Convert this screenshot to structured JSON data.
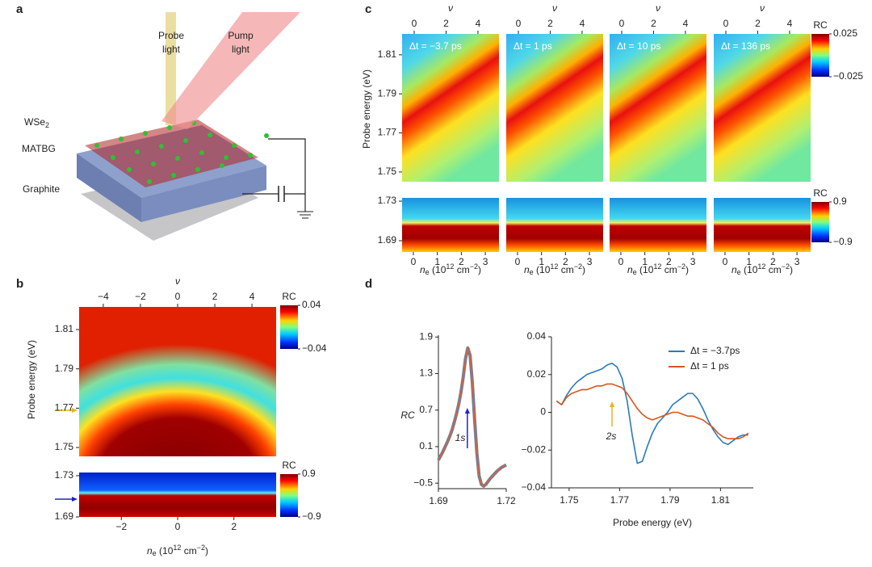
{
  "panel_a": {
    "label": "a",
    "probe": [
      "Probe",
      "light"
    ],
    "pump": [
      "Pump",
      "light"
    ],
    "wse2": [
      "WSe",
      "2"
    ],
    "matbg": "MATBG",
    "graphite": "Graphite"
  },
  "chart_data": [
    {
      "type": "heatmap",
      "label": "b",
      "ylabel": "Probe energy (eV)",
      "x2label": "ν",
      "x2lim": [
        -5.3,
        5.3
      ],
      "x2ticks": [
        {
          "value": -4,
          "label": "−4"
        },
        {
          "value": -2,
          "label": "−2"
        },
        0,
        2,
        4
      ],
      "ylim": [
        1.7455,
        1.8215
      ],
      "yticks": [
        1.75,
        1.77,
        1.79,
        1.81
      ],
      "colorbar": {
        "label": "RC",
        "lim": [
          -0.04,
          0.04
        ],
        "ticks": [
          0.04,
          {
            "value": -0.04,
            "label": "−0.04"
          }
        ]
      }
    },
    {
      "type": "heatmap",
      "xlim": [
        -3.5,
        3.5
      ],
      "xticks": [
        {
          "value": -2,
          "label": "−2"
        },
        0,
        2
      ],
      "xlabel": [
        "n",
        "e",
        " (10",
        "12",
        " cm",
        "−2",
        ")"
      ],
      "ylim": [
        1.69,
        1.7331
      ],
      "yticks": [
        1.69,
        1.73
      ],
      "colorbar": {
        "label": "RC",
        "lim": [
          -0.9,
          0.9
        ],
        "ticks": [
          0.9,
          {
            "value": -0.9,
            "label": "−0.9"
          }
        ]
      }
    },
    {
      "type": "heatmap",
      "label": "c",
      "ylabel": "Probe energy (eV)",
      "annotation": "Δt = −3.7 ps",
      "x2label": "ν",
      "x2lim": [
        -0.76,
        5.32
      ],
      "x2ticks": [
        0,
        2,
        4
      ],
      "ylim": [
        1.745,
        1.8207
      ],
      "yticks": [
        1.75,
        1.77,
        1.79,
        1.81
      ]
    },
    {
      "type": "heatmap",
      "annotation": "Δt = 1 ps",
      "x2label": "ν",
      "x2lim": [
        -0.76,
        5.32
      ],
      "x2ticks": [
        0,
        2,
        4
      ]
    },
    {
      "type": "heatmap",
      "annotation": "Δt = 10 ps",
      "x2label": "ν",
      "x2lim": [
        -0.76,
        5.32
      ],
      "x2ticks": [
        0,
        2,
        4
      ]
    },
    {
      "type": "heatmap",
      "annotation": "Δt = 136 ps",
      "x2label": "ν",
      "x2lim": [
        -0.76,
        5.32
      ],
      "x2ticks": [
        0,
        2,
        4
      ],
      "colorbar": {
        "label": "RC",
        "lim": [
          -0.025,
          0.025
        ],
        "ticks": [
          0.025,
          {
            "value": -0.025,
            "label": "−0.025"
          }
        ]
      }
    },
    {
      "type": "heatmap",
      "xlim": [
        -0.47,
        3.57
      ],
      "xticks": [
        0,
        1,
        2,
        3
      ],
      "xlabel": [
        "n",
        "e",
        " (10",
        "12",
        " cm",
        "−2",
        ")"
      ],
      "ylim": [
        1.6786,
        1.7333
      ],
      "yticks": [
        1.69,
        1.73
      ]
    },
    {
      "type": "heatmap",
      "xlim": [
        -0.47,
        3.57
      ],
      "xticks": [
        0,
        1,
        2,
        3
      ],
      "xlabel": [
        "n",
        "e",
        " (10",
        "12",
        " cm",
        "−2",
        ")"
      ]
    },
    {
      "type": "heatmap",
      "xlim": [
        -0.47,
        3.57
      ],
      "xticks": [
        0,
        1,
        2,
        3
      ],
      "xlabel": [
        "n",
        "e",
        " (10",
        "12",
        " cm",
        "−2",
        ")"
      ]
    },
    {
      "type": "heatmap",
      "xlim": [
        -0.47,
        3.57
      ],
      "xticks": [
        0,
        1,
        2,
        3
      ],
      "xlabel": [
        "n",
        "e",
        " (10",
        "12",
        " cm",
        "−2",
        ")"
      ],
      "colorbar": {
        "label": "RC",
        "lim": [
          -0.9,
          0.9
        ],
        "ticks": [
          0.9,
          {
            "value": -0.9,
            "label": "−0.9"
          }
        ]
      }
    },
    {
      "type": "line",
      "label": "d",
      "ylabel": "RC",
      "annotation": "1s",
      "xlim": [
        1.69,
        1.72
      ],
      "xticks": [
        1.69,
        1.72
      ],
      "ylim": [
        -0.59,
        1.93
      ],
      "yticks": [
        {
          "value": -0.5,
          "label": "−0.5"
        },
        0.1,
        0.7,
        1.3,
        1.9
      ],
      "x": [
        1.69,
        1.691,
        1.692,
        1.693,
        1.694,
        1.695,
        1.696,
        1.697,
        1.698,
        1.699,
        1.7,
        1.701,
        1.702,
        1.703,
        1.704,
        1.705,
        1.706,
        1.707,
        1.708,
        1.709,
        1.71,
        1.711,
        1.712,
        1.713,
        1.714,
        1.715,
        1.716,
        1.717,
        1.718,
        1.719,
        1.72
      ],
      "series": [
        {
          "color": "#6a7fa0",
          "values": [
            -0.12,
            -0.05,
            0.02,
            0.1,
            0.18,
            0.27,
            0.37,
            0.5,
            0.64,
            0.8,
            1.0,
            1.25,
            1.55,
            1.72,
            1.6,
            1.15,
            0.55,
            0.0,
            -0.38,
            -0.52,
            -0.55,
            -0.52,
            -0.47,
            -0.42,
            -0.38,
            -0.34,
            -0.3,
            -0.27,
            -0.24,
            -0.22,
            -0.2
          ]
        },
        {
          "color": "#e06030",
          "values": [
            -0.12,
            -0.05,
            0.02,
            0.1,
            0.18,
            0.27,
            0.37,
            0.5,
            0.64,
            0.8,
            1.0,
            1.25,
            1.55,
            1.72,
            1.6,
            1.15,
            0.55,
            0.0,
            -0.38,
            -0.52,
            -0.55,
            -0.52,
            -0.47,
            -0.42,
            -0.38,
            -0.34,
            -0.3,
            -0.27,
            -0.24,
            -0.22,
            -0.2
          ]
        }
      ]
    },
    {
      "type": "line",
      "xlabel": "Probe energy (eV)",
      "annotation": "2s",
      "legend": "upper right",
      "xlim": [
        1.743,
        1.823
      ],
      "xticks": [
        1.75,
        1.77,
        1.79,
        1.81
      ],
      "ylim": [
        -0.04,
        0.04
      ],
      "yticks": [
        {
          "value": -0.04,
          "label": "−0.04"
        },
        {
          "value": -0.02,
          "label": "−0.02"
        },
        0,
        0.02,
        0.04
      ],
      "x": [
        1.745,
        1.747,
        1.749,
        1.751,
        1.753,
        1.755,
        1.757,
        1.759,
        1.761,
        1.763,
        1.765,
        1.767,
        1.769,
        1.771,
        1.773,
        1.775,
        1.777,
        1.779,
        1.781,
        1.783,
        1.785,
        1.787,
        1.789,
        1.791,
        1.793,
        1.795,
        1.797,
        1.799,
        1.801,
        1.803,
        1.805,
        1.807,
        1.809,
        1.811,
        1.813,
        1.815,
        1.817,
        1.819,
        1.821
      ],
      "series": [
        {
          "name": "Δt = −3.7ps",
          "color": "#2a7ab8",
          "values": [
            0.006,
            0.004,
            0.009,
            0.013,
            0.016,
            0.018,
            0.02,
            0.021,
            0.022,
            0.023,
            0.025,
            0.026,
            0.024,
            0.018,
            0.006,
            -0.012,
            -0.027,
            -0.026,
            -0.018,
            -0.011,
            -0.006,
            -0.003,
            0.0,
            0.004,
            0.006,
            0.008,
            0.01,
            0.01,
            0.007,
            0.002,
            -0.004,
            -0.009,
            -0.013,
            -0.016,
            -0.017,
            -0.015,
            -0.013,
            -0.012,
            -0.012
          ]
        },
        {
          "name": "Δt = 1 ps",
          "color": "#d9541e",
          "values": [
            0.006,
            0.004,
            0.008,
            0.01,
            0.011,
            0.012,
            0.012,
            0.013,
            0.014,
            0.014,
            0.015,
            0.015,
            0.014,
            0.013,
            0.01,
            0.006,
            0.002,
            -0.001,
            -0.003,
            -0.004,
            -0.003,
            -0.002,
            -0.001,
            0.0,
            0.0,
            -0.001,
            -0.002,
            -0.002,
            -0.003,
            -0.004,
            -0.006,
            -0.008,
            -0.011,
            -0.013,
            -0.014,
            -0.014,
            -0.014,
            -0.013,
            -0.011
          ]
        }
      ]
    }
  ]
}
